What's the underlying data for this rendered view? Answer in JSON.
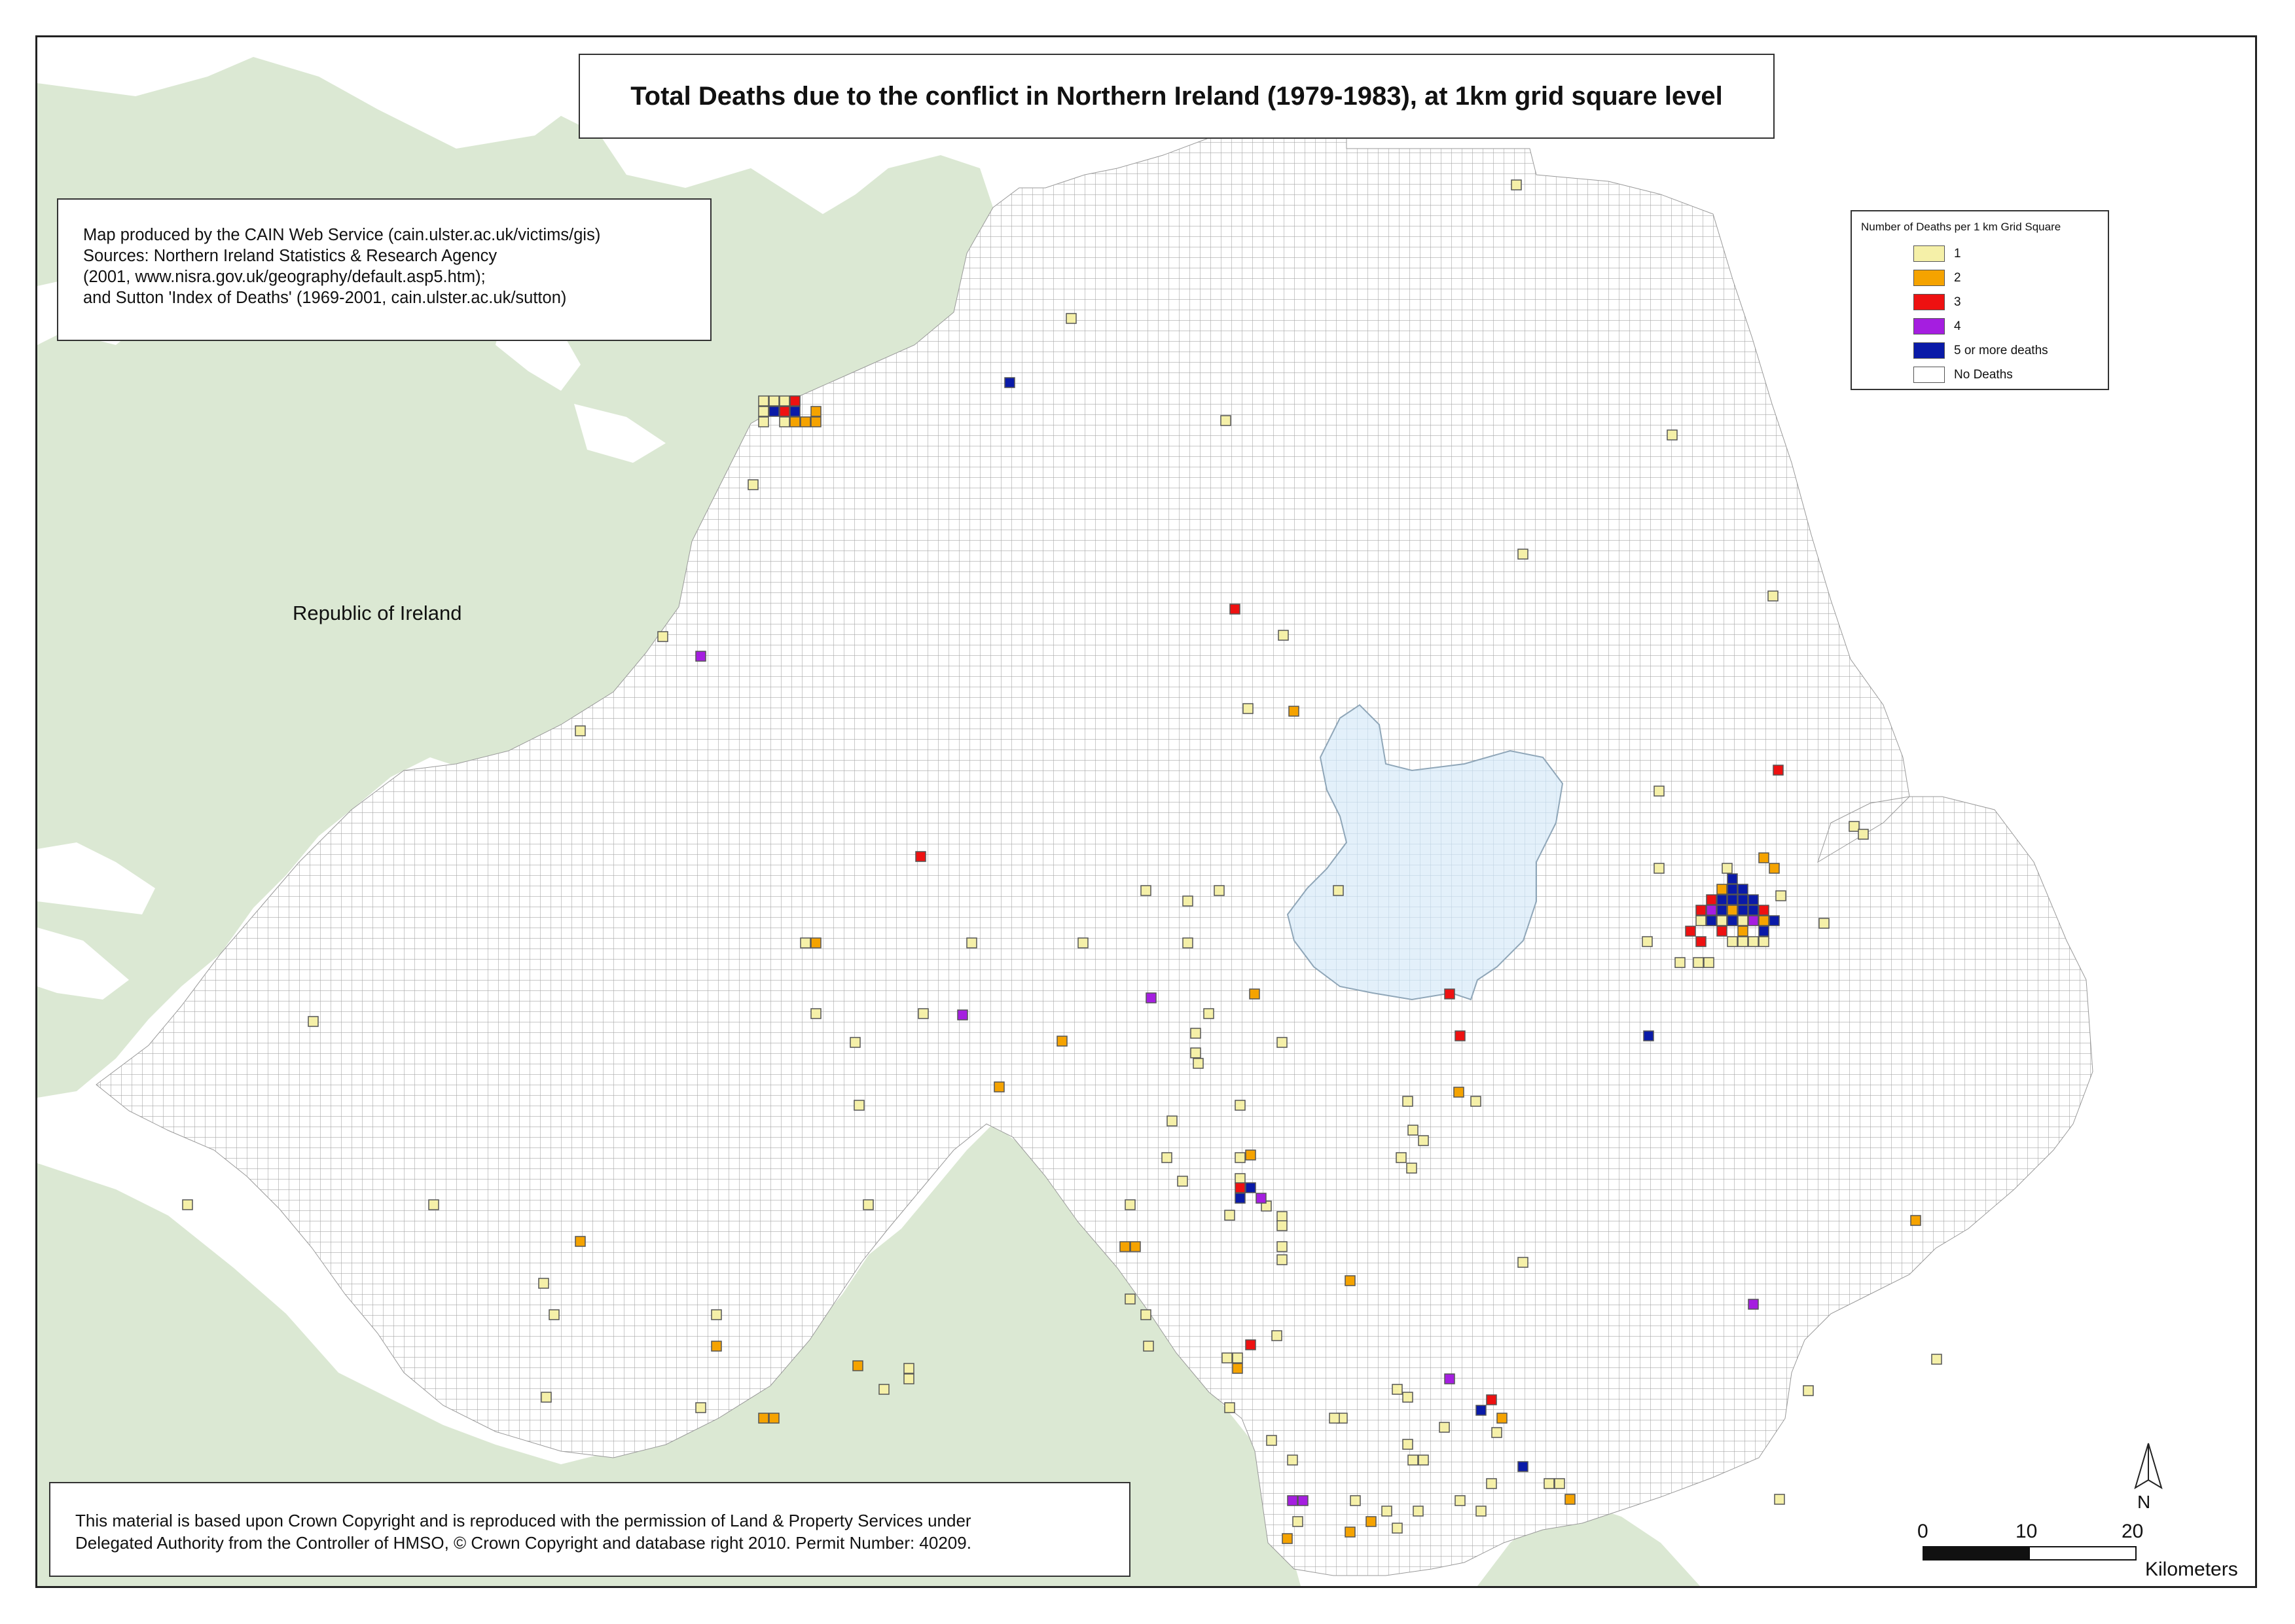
{
  "title": "Total Deaths due to the conflict in Northern Ireland (1979-1983), at 1km grid square level",
  "source_lines": [
    "Map produced by the CAIN Web Service (cain.ulster.ac.uk/victims/gis)",
    "Sources: Northern Ireland Statistics & Research Agency",
    "(2001, www.nisra.gov.uk/geography/default.asp5.htm);",
    "and Sutton 'Index of Deaths' (1969-2001, cain.ulster.ac.uk/sutton)"
  ],
  "legend": {
    "title": "Number of Deaths per 1 km Grid Square",
    "items": [
      {
        "label": "1",
        "color": "#f5f0a8"
      },
      {
        "label": "2",
        "color": "#f5a300"
      },
      {
        "label": "3",
        "color": "#ee1111"
      },
      {
        "label": "4",
        "color": "#a51ee0"
      },
      {
        "label": "5 or more deaths",
        "color": "#0a1aa8"
      },
      {
        "label": "No Deaths",
        "color": "#ffffff"
      }
    ]
  },
  "region_label": "Republic of Ireland",
  "copyright_lines": [
    "This material is based upon Crown Copyright and is reproduced with the permission of Land & Property Services under",
    "Delegated Authority from the Controller of HMSO, © Crown Copyright and database right 2010. Permit Number: 40209."
  ],
  "north_label": "N",
  "scale": {
    "ticks": [
      "0",
      "10",
      "20"
    ],
    "unit": "Kilometers"
  },
  "colors": {
    "land_roi": "#dbe8d3",
    "lough": "#e3f0fa",
    "grid_line": "#9a9a9a"
  }
}
